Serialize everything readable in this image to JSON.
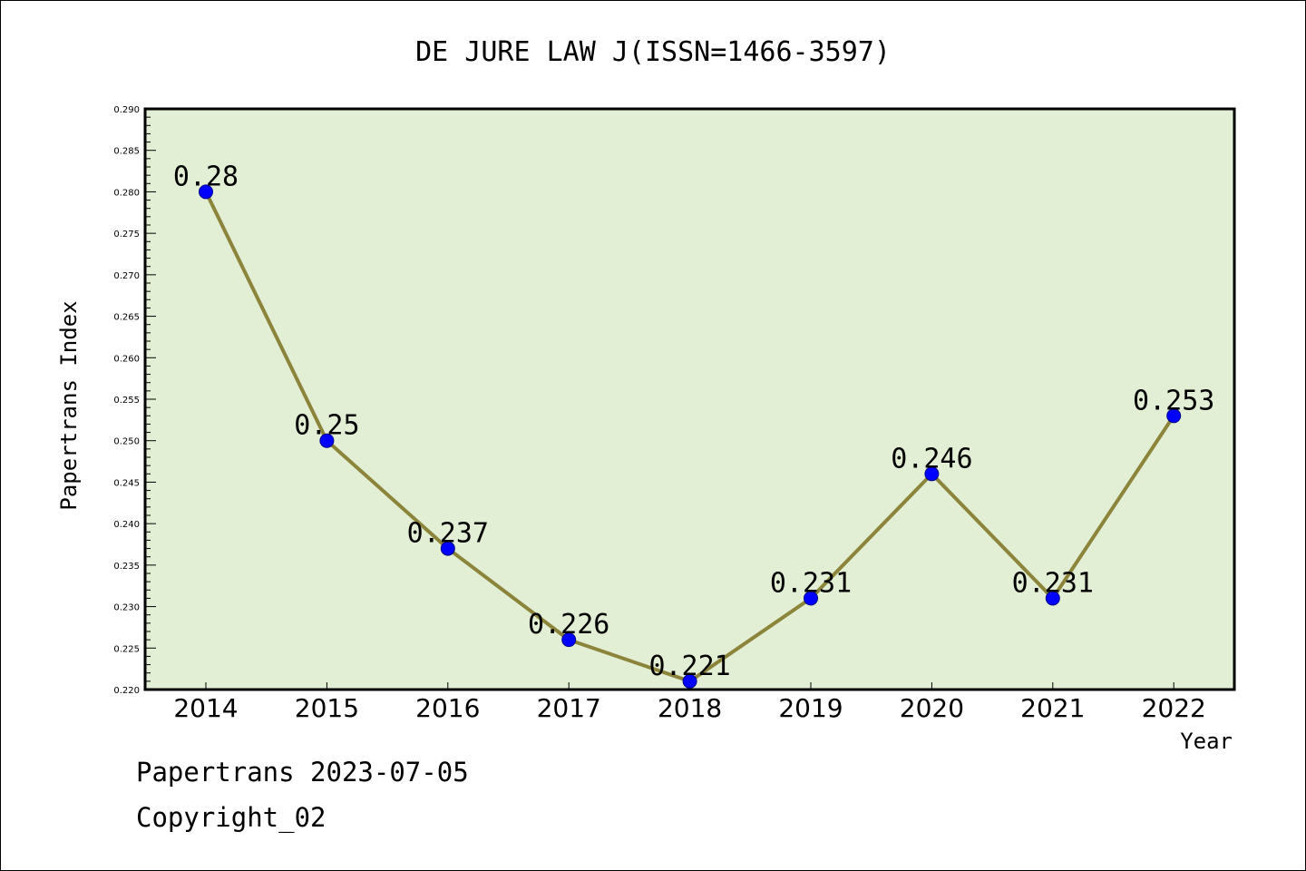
{
  "chart_data": {
    "type": "line",
    "title": "DE JURE LAW J(ISSN=1466-3597)",
    "xlabel": "Year",
    "ylabel": "Papertrans Index",
    "categories": [
      "2014",
      "2015",
      "2016",
      "2017",
      "2018",
      "2019",
      "2020",
      "2021",
      "2022"
    ],
    "series": [
      {
        "values": [
          0.28,
          0.25,
          0.237,
          0.226,
          0.221,
          0.231,
          0.246,
          0.231,
          0.253
        ],
        "data_labels": [
          "0.28",
          "0.25",
          "0.237",
          "0.226",
          "0.221",
          "0.231",
          "0.246",
          "0.231",
          "0.253"
        ]
      }
    ],
    "ylim": [
      0.22,
      0.29
    ],
    "yticks": [
      "0.220",
      "0.225",
      "0.230",
      "0.235",
      "0.240",
      "0.245",
      "0.250",
      "0.255",
      "0.260",
      "0.265",
      "0.270",
      "0.275",
      "0.280",
      "0.285",
      "0.290"
    ],
    "grid": false,
    "legend": "none",
    "colors": {
      "plot_background": "#e2efd5",
      "line": "#8b843a",
      "marker": "#0000ff",
      "axis": "#000000"
    }
  },
  "footer": {
    "date_line": "Papertrans 2023-07-05",
    "copyright": "Copyright_02"
  }
}
